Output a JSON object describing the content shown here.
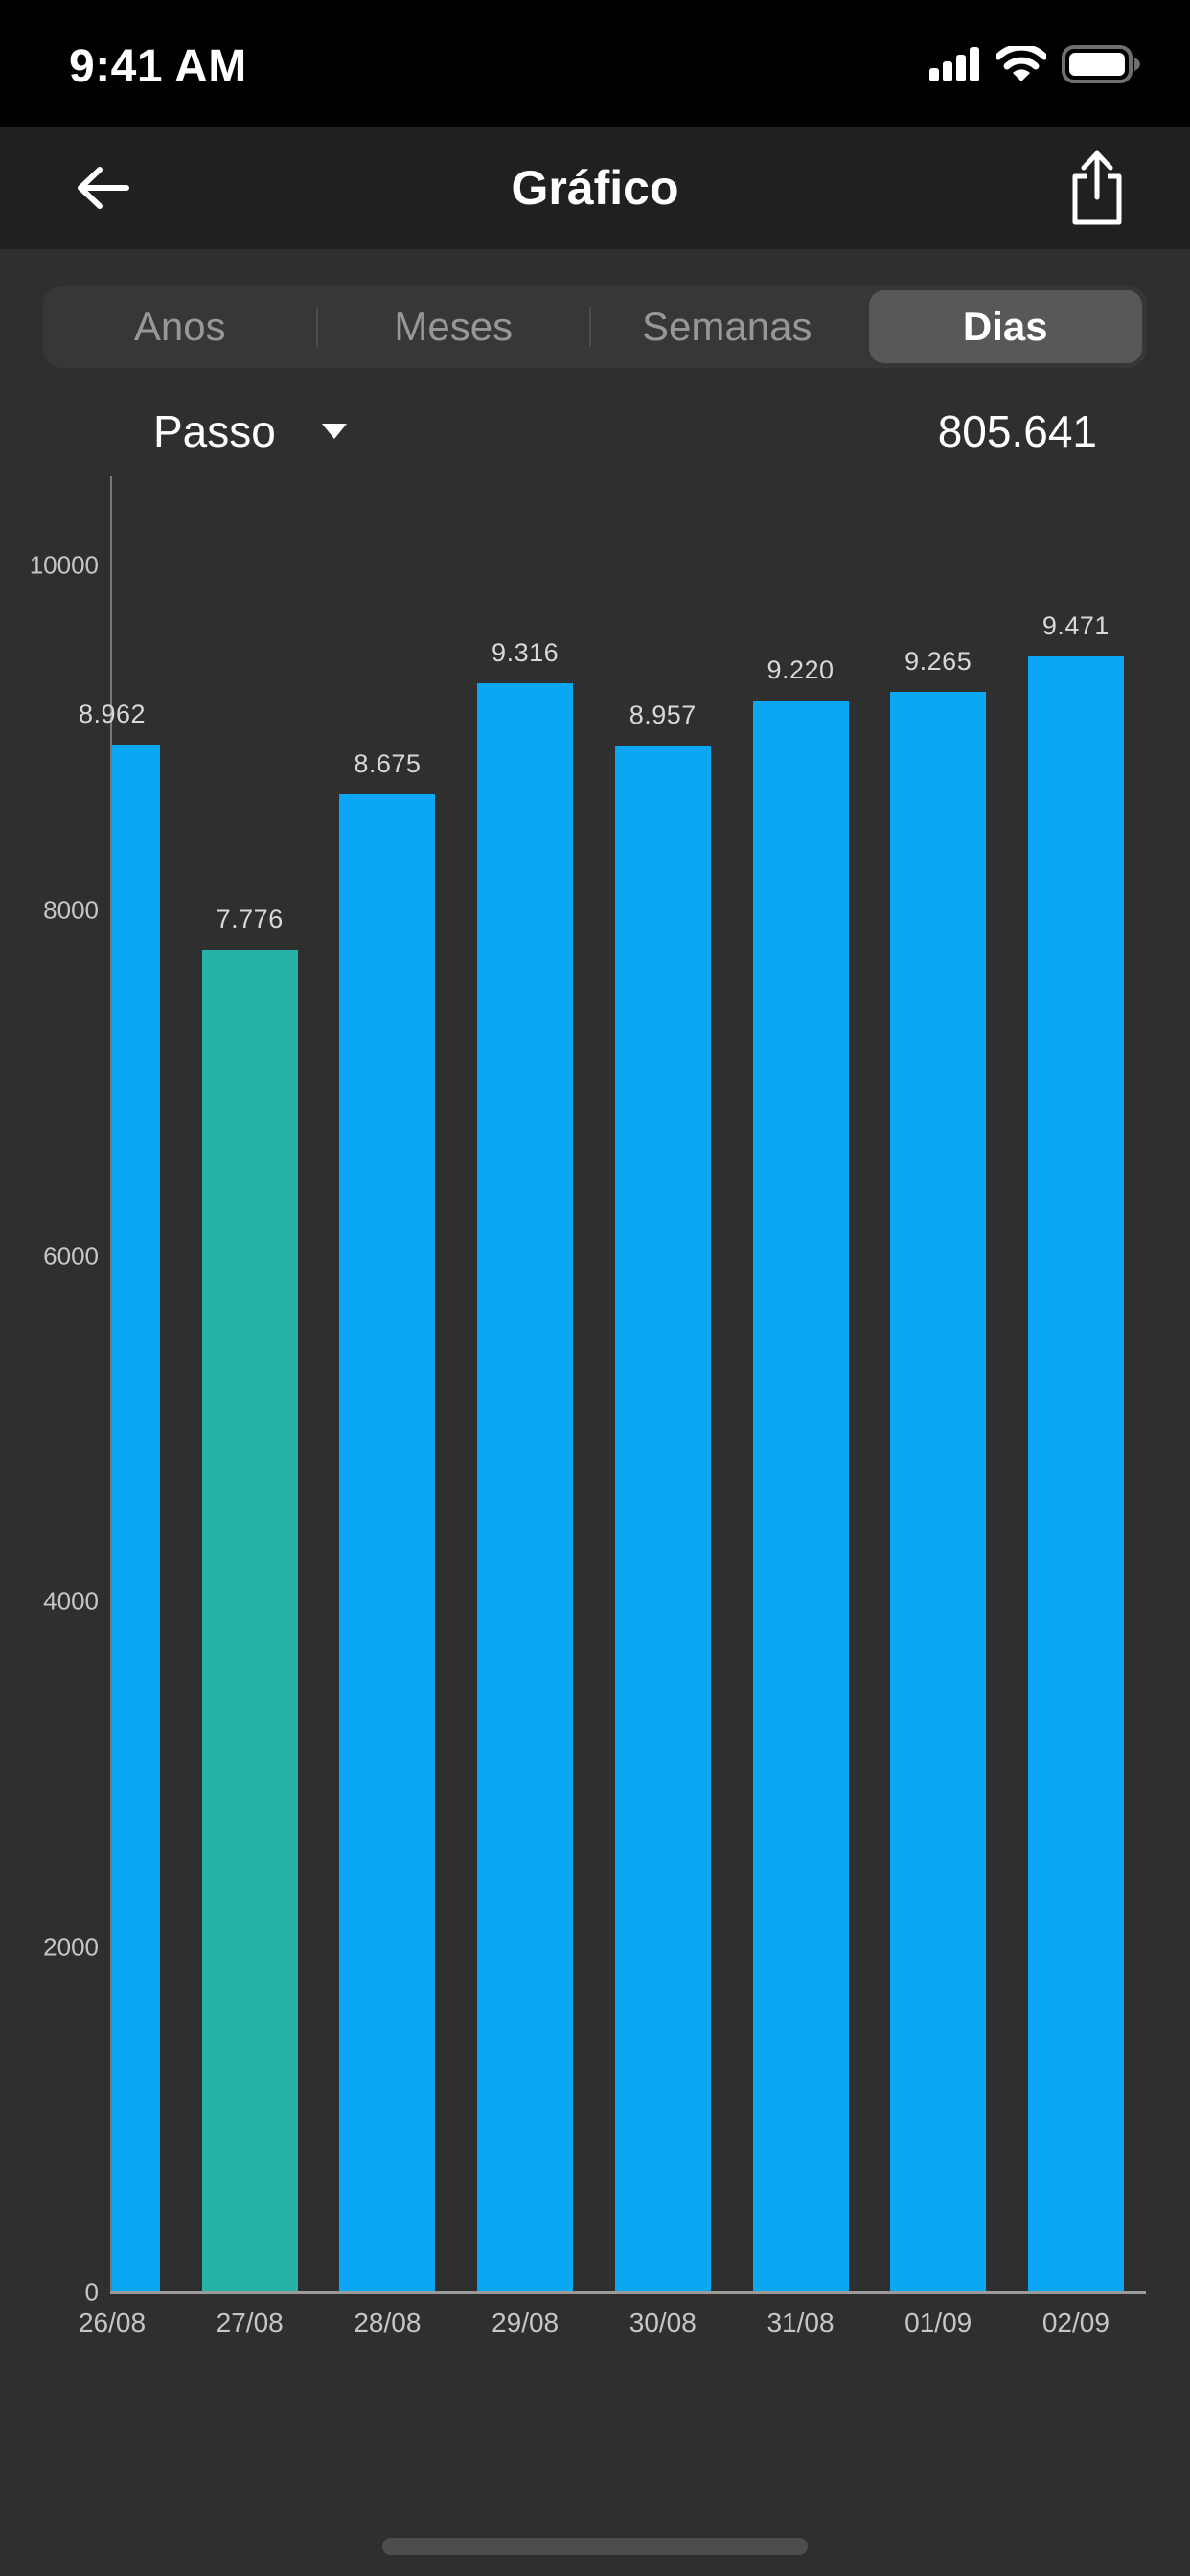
{
  "status_bar": {
    "time": "9:41 AM"
  },
  "nav": {
    "title": "Gráfico"
  },
  "tabs": {
    "items": [
      "Anos",
      "Meses",
      "Semanas",
      "Dias"
    ],
    "selected_index": 3,
    "selected_label": "Dias"
  },
  "metric": {
    "label": "Passo",
    "total": "805.641"
  },
  "chart_data": {
    "type": "bar",
    "title": "",
    "categories": [
      "26/08",
      "27/08",
      "28/08",
      "29/08",
      "30/08",
      "31/08",
      "01/09",
      "02/09"
    ],
    "values": [
      8962,
      7776,
      8675,
      9316,
      8957,
      9220,
      9265,
      9471
    ],
    "value_labels": [
      "8.962",
      "7.776",
      "8.675",
      "9.316",
      "8.957",
      "9.220",
      "9.265",
      "9.471"
    ],
    "bar_colors": [
      "#0aa8f4",
      "#26b2a8",
      "#0aa8f4",
      "#0aa8f4",
      "#0aa8f4",
      "#0aa8f4",
      "#0aa8f4",
      "#0aa8f4"
    ],
    "highlight_index": 1,
    "yticks": [
      0,
      2000,
      4000,
      6000,
      8000,
      10000
    ],
    "ylim": [
      0,
      10516
    ],
    "xlabel": "",
    "ylabel": "",
    "grid": false,
    "legend": null
  },
  "colors": {
    "background": "#2f2f2f",
    "nav_background": "#202020",
    "segment_background": "#373737",
    "segment_selected": "#58585a",
    "bar_blue": "#0aa8f4",
    "bar_teal": "#26b2a8",
    "axis": "#9b9b9b"
  }
}
